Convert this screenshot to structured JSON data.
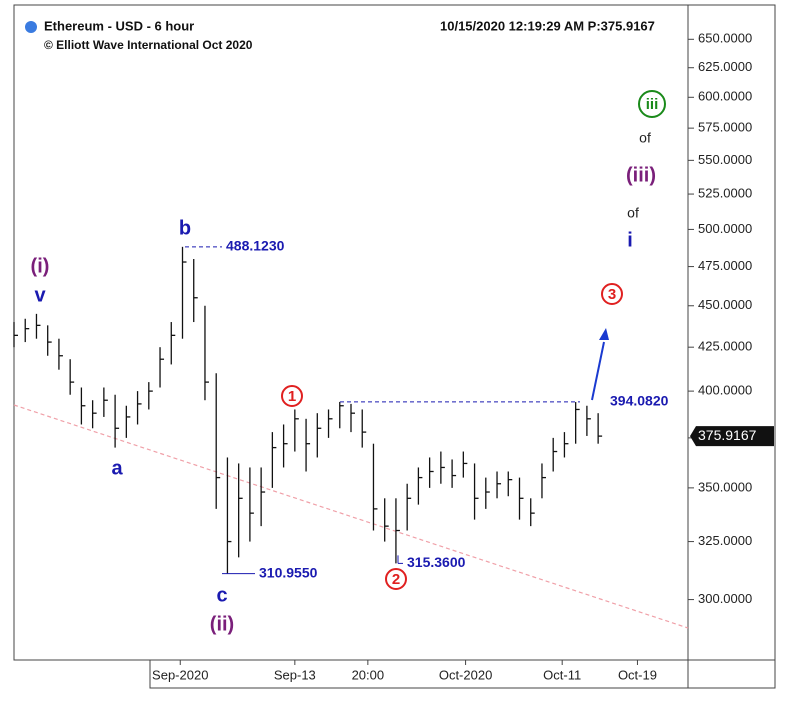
{
  "chart_data": {
    "type": "ohlc",
    "title": "Ethereum - USD - 6 hour",
    "subtitle": "© Elliott Wave International Oct 2020",
    "header_right": "10/15/2020 12:19:29 AM  P:375.9167",
    "log_scale": true,
    "color": "#111111",
    "x": [
      0,
      1,
      2,
      3,
      4,
      5,
      6,
      7,
      8,
      9,
      10,
      11,
      12,
      13,
      14,
      15,
      16,
      17,
      18,
      19,
      20,
      21,
      22,
      23,
      24,
      25,
      26,
      27,
      28,
      29,
      30,
      31,
      32,
      33,
      34,
      35,
      36,
      37,
      38,
      39,
      40,
      41,
      42,
      43,
      44,
      45,
      46,
      47,
      48,
      49,
      50,
      51,
      52
    ],
    "high": [
      440,
      442,
      445,
      438,
      430,
      418,
      402,
      395,
      402,
      398,
      392,
      400,
      405,
      425,
      440,
      488.123,
      480,
      450,
      410,
      365,
      362,
      360,
      360,
      378,
      382,
      390,
      385,
      388,
      390,
      394.082,
      393,
      390,
      372,
      345,
      345,
      352,
      360,
      365,
      368,
      364,
      368,
      362,
      355,
      358,
      358,
      355,
      345,
      362,
      375,
      378,
      394,
      392,
      388
    ],
    "low": [
      425,
      428,
      430,
      420,
      412,
      398,
      382,
      380,
      386,
      370,
      375,
      382,
      390,
      402,
      415,
      430,
      440,
      395,
      340,
      310.955,
      318,
      325,
      332,
      350,
      360,
      368,
      358,
      365,
      375,
      380,
      378,
      370,
      330,
      325,
      315.36,
      330,
      342,
      350,
      352,
      350,
      355,
      335,
      340,
      345,
      346,
      335,
      332,
      345,
      358,
      365,
      372,
      376,
      372
    ],
    "close": [
      432,
      436,
      438,
      428,
      420,
      405,
      392,
      388,
      395,
      380,
      386,
      393,
      400,
      418,
      432,
      478,
      455,
      405,
      355,
      325,
      345,
      338,
      348,
      370,
      372,
      385,
      372,
      380,
      385,
      392,
      388,
      378,
      340,
      332,
      330,
      345,
      355,
      358,
      360,
      356,
      362,
      345,
      348,
      352,
      354,
      345,
      338,
      355,
      368,
      372,
      390,
      385,
      375.9167
    ],
    "xlim": [
      0,
      60
    ],
    "xticks": [
      {
        "value": 14.8,
        "label": "Sep-2020"
      },
      {
        "value": 25,
        "label": "Sep-13"
      },
      {
        "value": 31.5,
        "label": "20:00"
      },
      {
        "value": 40.2,
        "label": "Oct-2020"
      },
      {
        "value": 48.8,
        "label": "Oct-11"
      },
      {
        "value": 55.5,
        "label": "Oct-19"
      }
    ],
    "ylim": [
      276,
      681.5
    ],
    "yticks": [
      {
        "value": 300,
        "label": "300.0000"
      },
      {
        "value": 325,
        "label": "325.0000"
      },
      {
        "value": 350,
        "label": "350.0000"
      },
      {
        "value": 375,
        "label": "375.0000"
      },
      {
        "value": 400,
        "label": "400.0000"
      },
      {
        "value": 425,
        "label": "425.0000"
      },
      {
        "value": 450,
        "label": "450.0000"
      },
      {
        "value": 475,
        "label": "475.0000"
      },
      {
        "value": 500,
        "label": "500.0000"
      },
      {
        "value": 525,
        "label": "525.0000"
      },
      {
        "value": 550,
        "label": "550.0000"
      },
      {
        "value": 575,
        "label": "575.0000"
      },
      {
        "value": 600,
        "label": "600.0000"
      },
      {
        "value": 625,
        "label": "625.0000"
      },
      {
        "value": 650,
        "label": "650.0000"
      }
    ],
    "last_price": {
      "value": 375.9167,
      "label": "375.9167"
    },
    "price_labels": [
      {
        "value": 488.123,
        "label": "488.1230"
      },
      {
        "value": 310.955,
        "label": "310.9550"
      },
      {
        "value": 315.36,
        "label": "315.3600"
      },
      {
        "value": 394.082,
        "label": "394.0820"
      }
    ],
    "annotations": [
      {
        "text": "(i)",
        "color": "#7a1f7a"
      },
      {
        "text": "v",
        "color": "#1a1ab0"
      },
      {
        "text": "b",
        "color": "#1a1ab0"
      },
      {
        "text": "a",
        "color": "#1a1ab0"
      },
      {
        "text": "c",
        "color": "#1a1ab0"
      },
      {
        "text": "(ii)",
        "color": "#7a1f7a"
      },
      {
        "text": "1",
        "color": "#e02020",
        "circled": true
      },
      {
        "text": "2",
        "color": "#e02020",
        "circled": true
      },
      {
        "text": "3",
        "color": "#e02020",
        "circled": true
      },
      {
        "text": "iii",
        "color": "#1a8a1a",
        "circled": true
      },
      {
        "text": "of",
        "color": "#222222"
      },
      {
        "text": "(iii)",
        "color": "#7a1f7a"
      },
      {
        "text": "of",
        "color": "#222222"
      },
      {
        "text": "i",
        "color": "#1a1ab0"
      }
    ]
  }
}
